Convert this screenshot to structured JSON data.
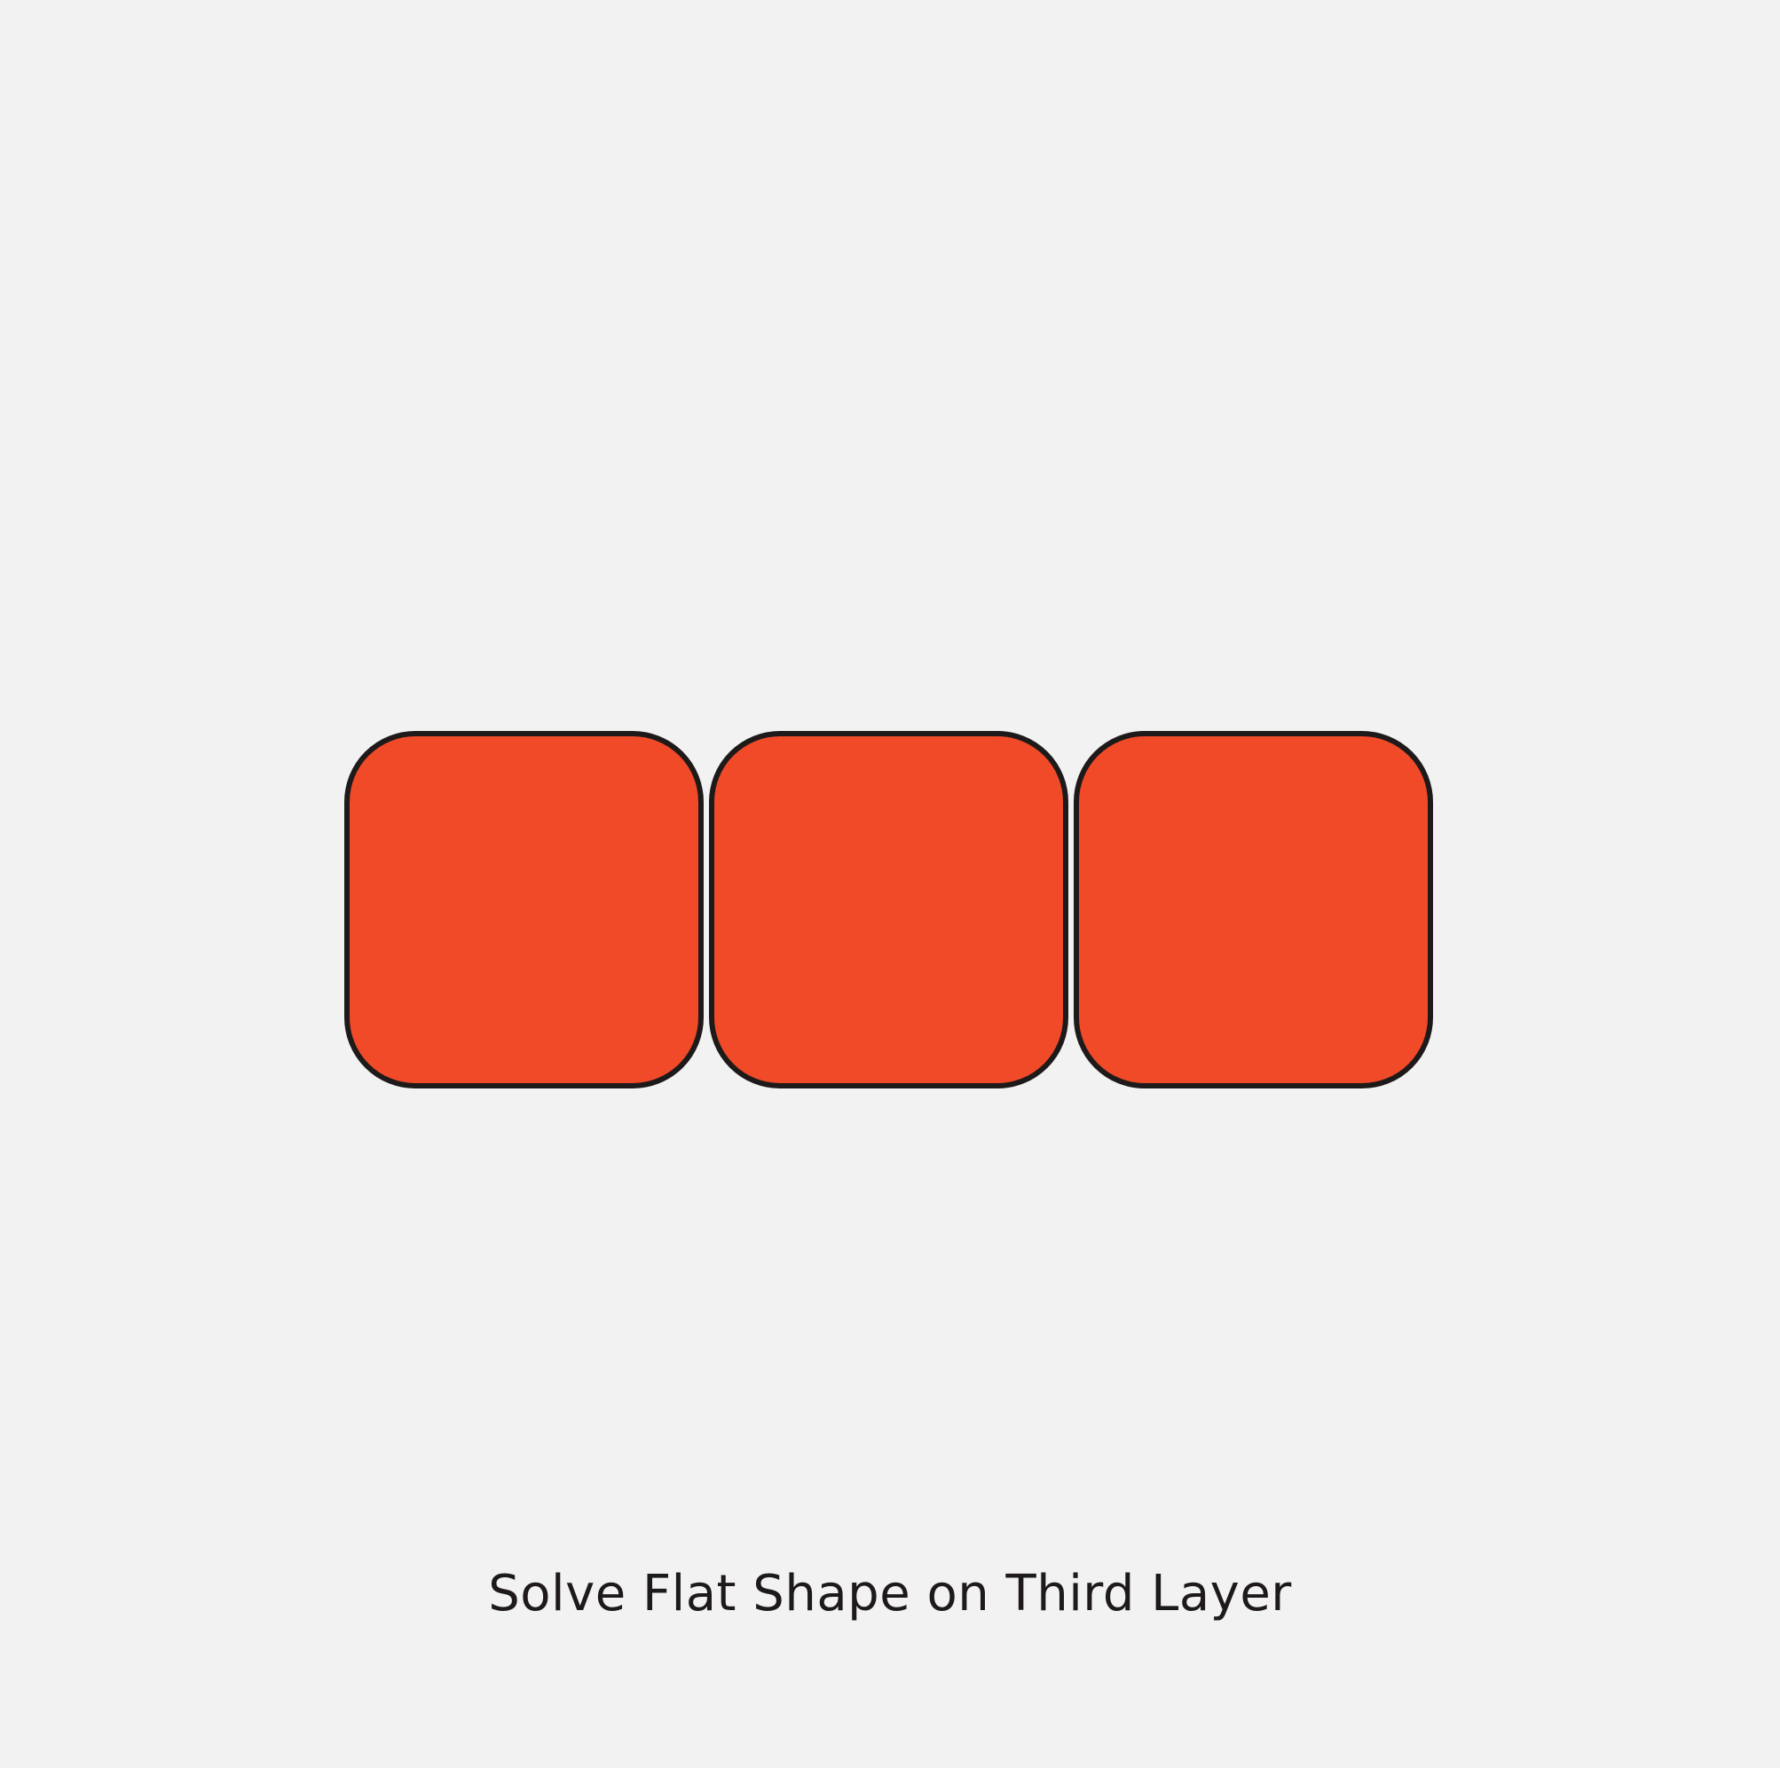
{
  "diagram": {
    "caption": "Solve Flat Shape on Third Layer",
    "tiles": [
      {
        "color": "#f04a29"
      },
      {
        "color": "#f04a29"
      },
      {
        "color": "#f04a29"
      }
    ],
    "outline_color": "#1e1a1a",
    "background_color": "#f2f2f2"
  }
}
